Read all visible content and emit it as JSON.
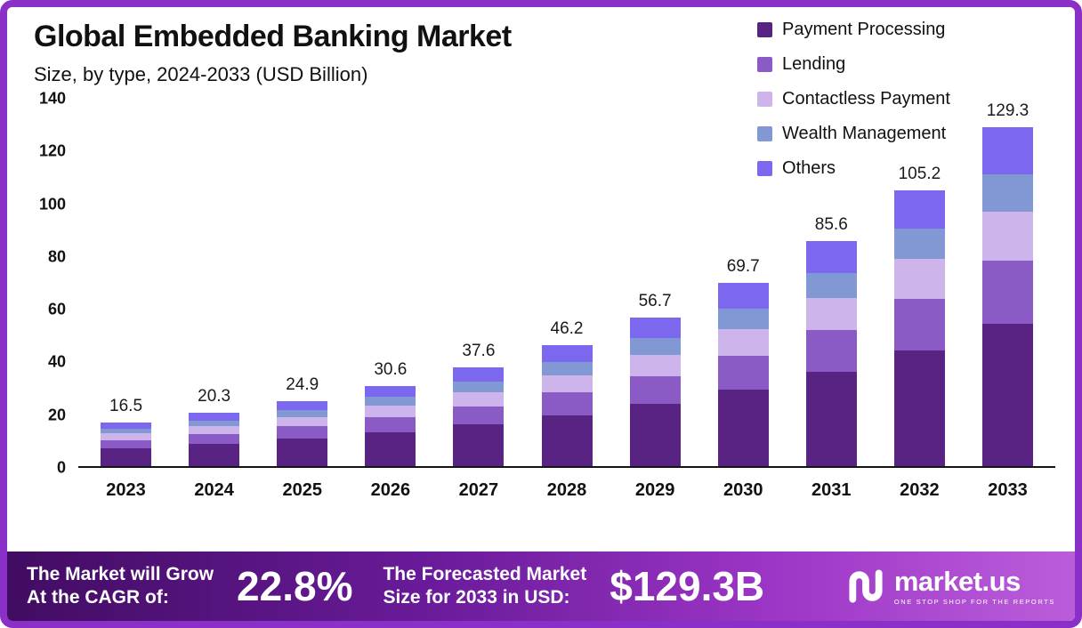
{
  "header": {
    "title": "Global Embedded Banking Market",
    "subtitle": "Size, by type, 2024-2033 (USD Billion)"
  },
  "chart_data": {
    "type": "bar",
    "stacked": true,
    "title": "Global Embedded Banking Market",
    "subtitle": "Size, by type, 2024-2033 (USD Billion)",
    "xlabel": "",
    "ylabel": "",
    "ylim": [
      0,
      140
    ],
    "yticks": [
      0,
      20,
      40,
      60,
      80,
      100,
      120,
      140
    ],
    "grid": false,
    "legend_position": "top-right",
    "categories": [
      "2023",
      "2024",
      "2025",
      "2026",
      "2027",
      "2028",
      "2029",
      "2030",
      "2031",
      "2032",
      "2033"
    ],
    "totals": [
      16.5,
      20.3,
      24.9,
      30.6,
      37.6,
      46.2,
      56.7,
      69.7,
      85.6,
      105.2,
      129.3
    ],
    "series": [
      {
        "name": "Payment Processing",
        "color": "#582383",
        "values": [
          6.9,
          8.5,
          10.5,
          12.9,
          15.8,
          19.4,
          23.8,
          29.3,
          36.0,
          44.2,
          54.3
        ]
      },
      {
        "name": "Lending",
        "color": "#8b5bc5",
        "values": [
          3.1,
          3.8,
          4.6,
          5.7,
          7.0,
          8.6,
          10.5,
          12.9,
          15.8,
          19.5,
          23.9
        ]
      },
      {
        "name": "Contactless Payment",
        "color": "#cdb4ea",
        "values": [
          2.4,
          2.9,
          3.6,
          4.4,
          5.4,
          6.7,
          8.2,
          10.1,
          12.4,
          15.2,
          18.8
        ]
      },
      {
        "name": "Wealth Management",
        "color": "#8198d4",
        "values": [
          1.8,
          2.2,
          2.7,
          3.4,
          4.1,
          5.1,
          6.2,
          7.7,
          9.4,
          11.6,
          14.2
        ]
      },
      {
        "name": "Others",
        "color": "#7b68ee",
        "values": [
          2.3,
          2.9,
          3.5,
          4.2,
          5.3,
          6.4,
          8.0,
          9.7,
          12.0,
          14.7,
          18.1
        ]
      }
    ]
  },
  "footer": {
    "cagr_label_lines": [
      "The Market will Grow",
      "At the CAGR of:"
    ],
    "cagr_value": "22.8%",
    "forecast_label_lines": [
      "The Forecasted Market",
      "Size for 2033 in USD:"
    ],
    "forecast_value": "$129.3B",
    "brand": "market.us",
    "brand_tagline": "ONE STOP SHOP FOR THE REPORTS"
  }
}
